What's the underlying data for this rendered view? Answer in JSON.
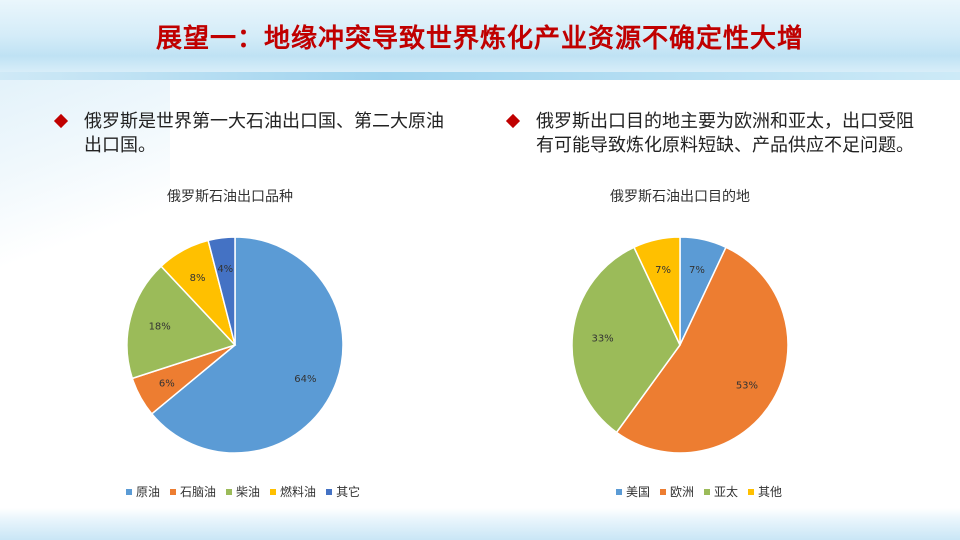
{
  "slide": {
    "title": "展望一：地缘冲突导致世界炼化产业资源不确定性大增"
  },
  "bullets": {
    "left": "俄罗斯是世界第一大石油出口国、第二大原油出口国。",
    "right": "俄罗斯出口目的地主要为欧洲和亚太，出口受阻有可能导致炼化原料短缺、产品供应不足问题。"
  },
  "chart_data": [
    {
      "type": "pie",
      "title": "俄罗斯石油出口品种",
      "categories": [
        "原油",
        "石脑油",
        "柴油",
        "燃料油",
        "其它"
      ],
      "values": [
        64,
        6,
        18,
        8,
        4
      ],
      "labels": [
        "64%",
        "6%",
        "18%",
        "8%",
        "4%"
      ],
      "colors": [
        "#5b9bd5",
        "#ed7d31",
        "#9bbb59",
        "#ffc000",
        "#4472c4"
      ],
      "legend_position": "bottom"
    },
    {
      "type": "pie",
      "title": "俄罗斯石油出口目的地",
      "categories": [
        "美国",
        "欧洲",
        "亚太",
        "其他"
      ],
      "values": [
        7,
        53,
        33,
        7
      ],
      "labels": [
        "7%",
        "53%",
        "33%",
        "7%"
      ],
      "colors": [
        "#5b9bd5",
        "#ed7d31",
        "#9bbb59",
        "#ffc000"
      ],
      "legend_position": "bottom"
    }
  ]
}
